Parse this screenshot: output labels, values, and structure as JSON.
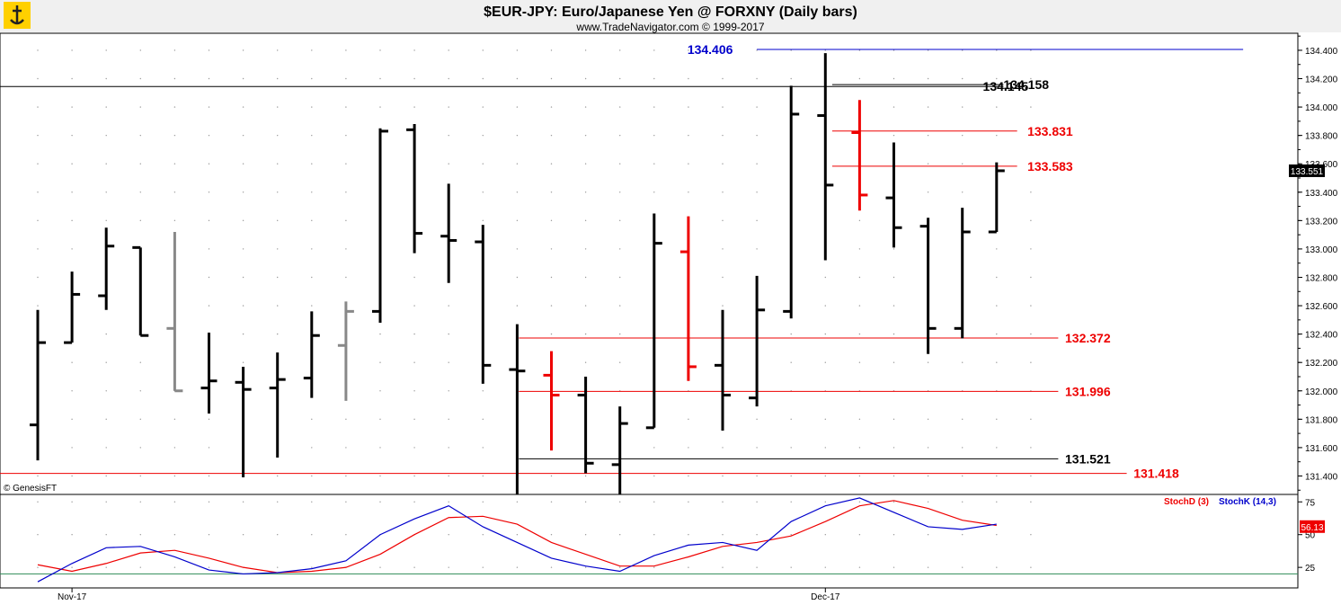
{
  "chart_data": {
    "type": "ohlc",
    "title": "$EUR-JPY:  Euro/Japanese Yen @ FORXNY  (Daily bars)",
    "subtitle": "www.TradeNavigator.com © 1999-2017",
    "copyright": "© GenesisFT",
    "last_price": "133.551",
    "price_axis": {
      "range": [
        131.27,
        134.52
      ],
      "ticks": [
        "131.400",
        "131.600",
        "131.800",
        "132.000",
        "132.200",
        "132.400",
        "132.600",
        "132.800",
        "133.000",
        "133.200",
        "133.400",
        "133.600",
        "133.800",
        "134.000",
        "134.200",
        "134.400"
      ]
    },
    "x_labels": [
      {
        "text": "Nov-17",
        "bar": 1
      },
      {
        "text": "Dec-17",
        "bar": 23
      }
    ],
    "bars": [
      {
        "o": 131.76,
        "h": 132.57,
        "l": 131.51,
        "c": 132.34,
        "color": "black"
      },
      {
        "o": 132.34,
        "h": 132.84,
        "l": 132.34,
        "c": 132.68,
        "color": "black"
      },
      {
        "o": 132.67,
        "h": 133.15,
        "l": 132.57,
        "c": 133.02,
        "color": "black"
      },
      {
        "o": 133.01,
        "h": 133.01,
        "l": 132.39,
        "c": 132.39,
        "color": "black"
      },
      {
        "o": 132.44,
        "h": 133.12,
        "l": 132.0,
        "c": 132.0,
        "color": "gray"
      },
      {
        "o": 132.02,
        "h": 132.41,
        "l": 131.84,
        "c": 132.07,
        "color": "black"
      },
      {
        "o": 132.06,
        "h": 132.17,
        "l": 131.39,
        "c": 132.01,
        "color": "black"
      },
      {
        "o": 132.02,
        "h": 132.27,
        "l": 131.53,
        "c": 132.08,
        "color": "black"
      },
      {
        "o": 132.09,
        "h": 132.56,
        "l": 131.95,
        "c": 132.39,
        "color": "black"
      },
      {
        "o": 132.32,
        "h": 132.63,
        "l": 131.93,
        "c": 132.56,
        "color": "gray"
      },
      {
        "o": 132.56,
        "h": 133.85,
        "l": 132.48,
        "c": 133.83,
        "color": "black"
      },
      {
        "o": 133.84,
        "h": 133.88,
        "l": 132.97,
        "c": 133.11,
        "color": "black"
      },
      {
        "o": 133.09,
        "h": 133.46,
        "l": 132.76,
        "c": 133.06,
        "color": "black"
      },
      {
        "o": 133.05,
        "h": 133.17,
        "l": 132.05,
        "c": 132.18,
        "color": "black"
      },
      {
        "o": 132.15,
        "h": 132.47,
        "l": 131.27,
        "c": 132.14,
        "color": "black"
      },
      {
        "o": 132.11,
        "h": 132.28,
        "l": 131.58,
        "c": 131.97,
        "color": "red"
      },
      {
        "o": 131.97,
        "h": 132.1,
        "l": 131.42,
        "c": 131.49,
        "color": "black"
      },
      {
        "o": 131.48,
        "h": 131.89,
        "l": 131.27,
        "c": 131.77,
        "color": "black"
      },
      {
        "o": 131.74,
        "h": 133.25,
        "l": 131.74,
        "c": 133.04,
        "color": "black"
      },
      {
        "o": 132.98,
        "h": 133.23,
        "l": 132.07,
        "c": 132.17,
        "color": "red"
      },
      {
        "o": 132.18,
        "h": 132.57,
        "l": 131.72,
        "c": 131.97,
        "color": "black"
      },
      {
        "o": 131.95,
        "h": 132.81,
        "l": 131.89,
        "c": 132.57,
        "color": "black"
      },
      {
        "o": 132.56,
        "h": 134.15,
        "l": 132.51,
        "c": 133.95,
        "color": "black"
      },
      {
        "o": 133.94,
        "h": 134.38,
        "l": 132.92,
        "c": 133.45,
        "color": "black"
      },
      {
        "o": 133.82,
        "h": 134.05,
        "l": 133.27,
        "c": 133.38,
        "color": "red"
      },
      {
        "o": 133.36,
        "h": 133.75,
        "l": 133.01,
        "c": 133.15,
        "color": "black"
      },
      {
        "o": 133.16,
        "h": 133.22,
        "l": 132.26,
        "c": 132.44,
        "color": "black"
      },
      {
        "o": 132.44,
        "h": 133.29,
        "l": 132.37,
        "c": 133.12,
        "color": "black"
      },
      {
        "o": 133.12,
        "h": 133.61,
        "l": 133.12,
        "c": 133.551,
        "color": "black"
      }
    ],
    "levels": [
      {
        "value": "134.406",
        "color": "#0000cc",
        "label_side": "left",
        "from_bar": 21,
        "to_bar": 35.2,
        "label_bar": 20.3
      },
      {
        "value": "134.158",
        "color": "#000000",
        "label_side": "right",
        "from_bar": 23.2,
        "to_bar": 28.2,
        "label_bar": 28.2
      },
      {
        "value": "134.145",
        "color": "#000000",
        "label_side": "right",
        "from_bar": -1.5,
        "to_bar": 28.2,
        "label_bar": 27.6
      },
      {
        "value": "133.831",
        "color": "#ee0000",
        "label_side": "right",
        "from_bar": 23.2,
        "to_bar": 28.6,
        "label_bar": 28.9
      },
      {
        "value": "133.583",
        "color": "#ee0000",
        "label_side": "right",
        "from_bar": 23.2,
        "to_bar": 28.6,
        "label_bar": 28.9
      },
      {
        "value": "132.372",
        "color": "#ee0000",
        "label_side": "right",
        "from_bar": 14.05,
        "to_bar": 29.8,
        "label_bar": 30.0
      },
      {
        "value": "131.996",
        "color": "#ee0000",
        "label_side": "right",
        "from_bar": 14.05,
        "to_bar": 29.8,
        "label_bar": 30.0
      },
      {
        "value": "131.521",
        "color": "#000000",
        "label_side": "right",
        "from_bar": 14.05,
        "to_bar": 29.8,
        "label_bar": 30.0
      },
      {
        "value": "131.418",
        "color": "#ee0000",
        "label_side": "right",
        "from_bar": -1.5,
        "to_bar": 31.8,
        "label_bar": 32.0
      }
    ],
    "stochastic": {
      "d_label": "StochD (3)",
      "k_label": "StochK (14,3)",
      "d_color": "#ee0000",
      "k_color": "#0000cc",
      "last_value": "56.13",
      "ticks": [
        "25",
        "50",
        "75"
      ],
      "range": [
        10,
        80
      ],
      "k_values": [
        14,
        28,
        40,
        41,
        33,
        23,
        20,
        21,
        24,
        30,
        50,
        62,
        72,
        56,
        44,
        32,
        26,
        22,
        34,
        42,
        44,
        38,
        60,
        72,
        78,
        67,
        56,
        54,
        58
      ],
      "d_values": [
        27,
        22,
        28,
        36,
        38,
        32,
        25,
        21,
        22,
        25,
        35,
        50,
        63,
        64,
        58,
        44,
        35,
        26,
        26,
        33,
        41,
        44,
        49,
        60,
        72,
        76,
        70,
        61,
        57
      ]
    }
  }
}
